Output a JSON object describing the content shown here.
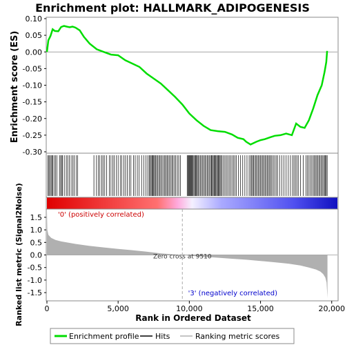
{
  "chart_data": {
    "type": "line",
    "title": "Enrichment plot: HALLMARK_ADIPOGENESIS",
    "colors": {
      "profile": "#00dd00",
      "hits": "#000000",
      "metric_fill": "#b0b0b0",
      "positive": "#ff0000",
      "negative": "#0000ff",
      "positive_label": "#cc0000",
      "negative_label": "#0000cc"
    },
    "es_panel": {
      "ylabel": "Enrichment score (ES)",
      "ylim": [
        -0.3,
        0.1
      ],
      "yticks": [
        "0.10",
        "0.05",
        "0.00",
        "-0.05",
        "-0.10",
        "-0.15",
        "-0.20",
        "-0.25",
        "-0.30"
      ],
      "series": [
        {
          "name": "Enrichment profile",
          "x": [
            0,
            100,
            250,
            400,
            550,
            800,
            1000,
            1200,
            1400,
            1600,
            1800,
            2000,
            2300,
            2600,
            3000,
            3500,
            4000,
            4500,
            5000,
            5500,
            6000,
            6500,
            7000,
            7500,
            8000,
            8500,
            9000,
            9510,
            10000,
            10500,
            11000,
            11500,
            12000,
            12500,
            13000,
            13400,
            13800,
            14000,
            14300,
            14700,
            15000,
            15300,
            15700,
            16000,
            16400,
            16800,
            17200,
            17500,
            17800,
            18100,
            18400,
            18700,
            19000,
            19300,
            19500,
            19620,
            19680
          ],
          "y": [
            0.0,
            0.035,
            0.048,
            0.068,
            0.063,
            0.062,
            0.075,
            0.078,
            0.076,
            0.074,
            0.076,
            0.073,
            0.065,
            0.045,
            0.025,
            0.008,
            0.0,
            -0.008,
            -0.01,
            -0.025,
            -0.035,
            -0.045,
            -0.065,
            -0.08,
            -0.095,
            -0.115,
            -0.135,
            -0.158,
            -0.185,
            -0.205,
            -0.222,
            -0.235,
            -0.238,
            -0.24,
            -0.248,
            -0.258,
            -0.262,
            -0.27,
            -0.278,
            -0.27,
            -0.265,
            -0.262,
            -0.256,
            -0.252,
            -0.25,
            -0.245,
            -0.25,
            -0.215,
            -0.225,
            -0.228,
            -0.205,
            -0.17,
            -0.13,
            -0.1,
            -0.06,
            -0.03,
            0.003
          ]
        }
      ]
    },
    "hits": [
      60,
      140,
      200,
      290,
      350,
      420,
      520,
      600,
      700,
      880,
      960,
      1040,
      1100,
      1220,
      1360,
      1460,
      1580,
      1700,
      1820,
      1920,
      2050,
      2160,
      3300,
      3480,
      3620,
      3720,
      3850,
      3940,
      4060,
      4200,
      4380,
      4500,
      4620,
      4730,
      4880,
      5000,
      5150,
      5260,
      5400,
      5520,
      5640,
      5780,
      5900,
      6080,
      6200,
      6350,
      6480,
      6650,
      6800,
      6950,
      7080,
      7180,
      7250,
      7320,
      7380,
      7440,
      7500,
      7560,
      7620,
      7700,
      7780,
      7860,
      7940,
      8020,
      8100,
      8200,
      8280,
      8360,
      8440,
      8520,
      8600,
      8700,
      8780,
      8860,
      8960,
      9050,
      9160,
      9260,
      9380,
      9850,
      9900,
      9960,
      10000,
      10050,
      10100,
      10150,
      10200,
      10260,
      10320,
      10380,
      10440,
      10500,
      10560,
      10620,
      10700,
      10780,
      10860,
      10940,
      11020,
      11100,
      11180,
      11260,
      11340,
      11420,
      11500,
      11560,
      11620,
      11680,
      11740,
      11800,
      11860,
      11920,
      11980,
      12040,
      12100,
      12160,
      12220,
      12300,
      12400,
      12500,
      12600,
      12700,
      12800,
      12900,
      13000,
      13100,
      13200,
      13300,
      13450,
      13600,
      13750,
      13900,
      14050,
      14200,
      14300,
      14380,
      14450,
      14520,
      14600,
      14680,
      14760,
      14840,
      14920,
      15000,
      15080,
      15160,
      15240,
      15320,
      15400,
      15480,
      15560,
      15640,
      15720,
      15800,
      15900,
      16000,
      16100,
      16200,
      16350,
      16500,
      16650,
      16800,
      16950,
      17100,
      17250,
      17350,
      17450,
      17550,
      17650,
      17800,
      18000,
      18200,
      18300,
      18400,
      18500,
      18600,
      18700,
      18780,
      18860,
      18940,
      19020,
      19100,
      19180,
      19260,
      19340,
      19420,
      19500,
      19560,
      19620,
      19680
    ],
    "heatmap": {
      "stops": [
        [
          0,
          "#e00000"
        ],
        [
          0.38,
          "#ff7070"
        ],
        [
          0.45,
          "#ffaadd"
        ],
        [
          0.5,
          "#f4f0ff"
        ],
        [
          0.6,
          "#aaaaff"
        ],
        [
          0.85,
          "#5050f0"
        ],
        [
          1,
          "#1010c0"
        ]
      ]
    },
    "metric_panel": {
      "ylabel": "Ranked list metric (Signal2Noise)",
      "ylim": [
        -1.8,
        1.8
      ],
      "yticks": [
        "1.5",
        "1.0",
        "0.5",
        "0.0",
        "-0.5",
        "-1.0",
        "-1.5"
      ],
      "zero_cross_label": "Zero cross at 9510",
      "zero_cross": 9510,
      "positive_label": "'0' (positively correlated)",
      "negative_label": "'3' (negatively correlated)",
      "profile": {
        "x": [
          0,
          30,
          100,
          300,
          600,
          1000,
          2000,
          3000,
          4000,
          5000,
          6000,
          7000,
          7600,
          8000,
          9000,
          9510,
          10000,
          11000,
          12000,
          13000,
          14000,
          15000,
          16000,
          17000,
          17800,
          18400,
          18900,
          19200,
          19400,
          19550,
          19640,
          19700
        ],
        "y": [
          1.75,
          1.0,
          0.8,
          0.68,
          0.6,
          0.54,
          0.44,
          0.36,
          0.3,
          0.24,
          0.19,
          0.13,
          0.09,
          0.06,
          0.02,
          0.0,
          -0.03,
          -0.07,
          -0.11,
          -0.15,
          -0.19,
          -0.24,
          -0.29,
          -0.35,
          -0.42,
          -0.5,
          -0.58,
          -0.66,
          -0.76,
          -0.9,
          -1.1,
          -1.72
        ]
      }
    },
    "xaxis": {
      "xlabel": "Rank in Ordered Dataset",
      "xlim": [
        0,
        20400
      ],
      "xticks": [
        "0",
        "5,000",
        "10,000",
        "15,000",
        "20,000"
      ],
      "xtick_values": [
        0,
        5000,
        10000,
        15000,
        20000
      ]
    },
    "legend": {
      "position": "bottom",
      "items": [
        "Enrichment profile",
        "Hits",
        "Ranking metric scores"
      ]
    }
  }
}
